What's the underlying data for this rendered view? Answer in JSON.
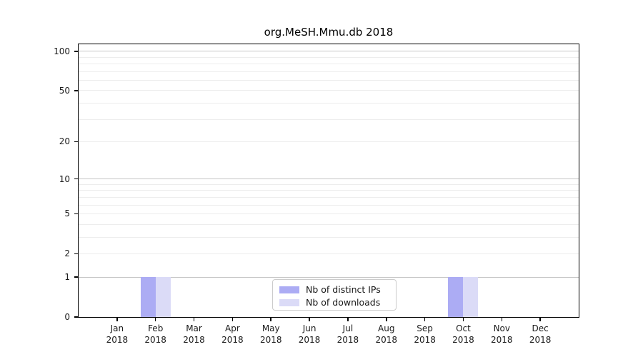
{
  "title": "org.MeSH.Mmu.db 2018",
  "colors": {
    "background": "#ffffff",
    "axis": "#000000",
    "grid_major": "#c6c6c6",
    "grid_minor": "#ededed",
    "distinct_ips": "#acacf4",
    "downloads": "#dbdbf7",
    "legend_border": "#cccccc",
    "text": "#1a1a1a"
  },
  "chart_data": {
    "type": "bar",
    "title": "org.MeSH.Mmu.db 2018",
    "xlabel": "",
    "ylabel": "",
    "y_scale": "log1p",
    "ylim": [
      0,
      113
    ],
    "y_ticks": [
      0,
      1,
      2,
      5,
      10,
      20,
      50,
      100
    ],
    "gridlines_major": [
      1,
      10,
      100
    ],
    "gridlines_minor": [
      2,
      3,
      4,
      5,
      6,
      7,
      8,
      9,
      20,
      30,
      40,
      50,
      60,
      70,
      80,
      90
    ],
    "categories": [
      {
        "label": "Jan",
        "sublabel": "2018"
      },
      {
        "label": "Feb",
        "sublabel": "2018"
      },
      {
        "label": "Mar",
        "sublabel": "2018"
      },
      {
        "label": "Apr",
        "sublabel": "2018"
      },
      {
        "label": "May",
        "sublabel": "2018"
      },
      {
        "label": "Jun",
        "sublabel": "2018"
      },
      {
        "label": "Jul",
        "sublabel": "2018"
      },
      {
        "label": "Aug",
        "sublabel": "2018"
      },
      {
        "label": "Sep",
        "sublabel": "2018"
      },
      {
        "label": "Oct",
        "sublabel": "2018"
      },
      {
        "label": "Nov",
        "sublabel": "2018"
      },
      {
        "label": "Dec",
        "sublabel": "2018"
      }
    ],
    "series": [
      {
        "name": "Nb of distinct IPs",
        "color": "#acacf4",
        "values": [
          0,
          1,
          0,
          0,
          0,
          0,
          0,
          0,
          0,
          1,
          0,
          0
        ]
      },
      {
        "name": "Nb of downloads",
        "color": "#dbdbf7",
        "values": [
          0,
          1,
          0,
          0,
          0,
          0,
          0,
          0,
          0,
          1,
          0,
          0
        ]
      }
    ],
    "legend": {
      "position": "lower-center",
      "entries": [
        {
          "label": "Nb of distinct IPs",
          "series_index": 0
        },
        {
          "label": "Nb of downloads",
          "series_index": 1
        }
      ]
    }
  }
}
